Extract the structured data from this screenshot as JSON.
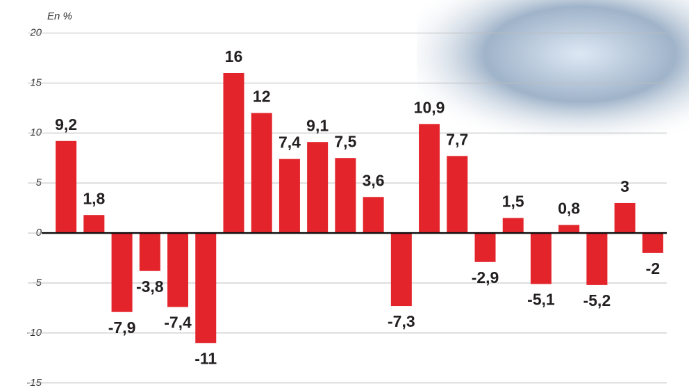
{
  "chart_data": {
    "type": "bar",
    "y_axis_label": "En %",
    "categories": [
      null,
      null,
      null,
      null,
      null,
      null,
      null,
      null,
      null,
      null,
      null,
      null,
      null,
      null,
      null,
      null,
      null,
      null,
      null,
      null,
      null,
      null
    ],
    "values": [
      9.2,
      1.8,
      -7.9,
      -3.8,
      -7.4,
      -11,
      16,
      12,
      7.4,
      9.1,
      7.5,
      3.6,
      -7.3,
      10.9,
      7.7,
      -2.9,
      1.5,
      -5.1,
      0.8,
      -5.2,
      3,
      -2
    ],
    "value_labels": [
      "9,2",
      "1,8",
      "-7,9",
      "-3,8",
      "-7,4",
      "-11",
      "16",
      "12",
      "7,4",
      "9,1",
      "7,5",
      "3,6",
      "-7,3",
      "10,9",
      "7,7",
      "-2,9",
      "1,5",
      "-5,1",
      "0,8",
      "-5,2",
      "3",
      "-2"
    ],
    "color": "#e3242b",
    "ylim": [
      -15.5,
      23.3
    ],
    "yticks": [
      20,
      15,
      10,
      5,
      0,
      -5,
      -10,
      -15
    ],
    "grid": true
  }
}
